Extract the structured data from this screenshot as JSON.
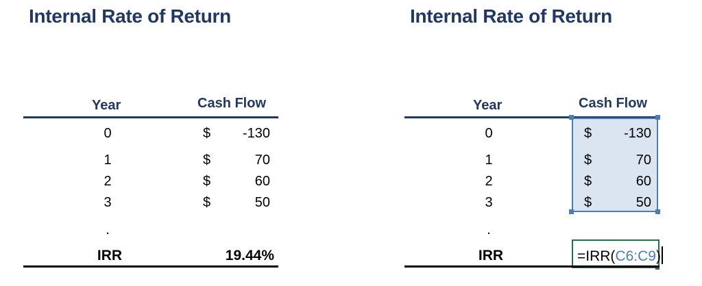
{
  "colors": {
    "title": "#1f3864",
    "selection_border": "#4a7ebb",
    "selection_fill": "#dbe5f1",
    "active_cell_border": "#217346",
    "reference_text": "#4a7ebb"
  },
  "left": {
    "title": "Internal Rate of Return",
    "year_header": "Year",
    "cashflow_header": "Cash Flow",
    "rows": [
      {
        "year": "0",
        "currency": "$",
        "amount": "-130"
      },
      {
        "year": "1",
        "currency": "$",
        "amount": "70"
      },
      {
        "year": "2",
        "currency": "$",
        "amount": "60"
      },
      {
        "year": "3",
        "currency": "$",
        "amount": "50"
      }
    ],
    "ellipsis": ".",
    "irr_label": "IRR",
    "irr_value": "19.44%"
  },
  "right": {
    "title": "Internal Rate of Return",
    "year_header": "Year",
    "cashflow_header": "Cash Flow",
    "rows": [
      {
        "year": "0",
        "currency": "$",
        "amount": "-130"
      },
      {
        "year": "1",
        "currency": "$",
        "amount": "70"
      },
      {
        "year": "2",
        "currency": "$",
        "amount": "60"
      },
      {
        "year": "3",
        "currency": "$",
        "amount": "50"
      }
    ],
    "ellipsis": ".",
    "irr_label": "IRR",
    "formula_prefix": "=IRR(",
    "formula_ref": "C6:C9",
    "formula_suffix": ")"
  }
}
